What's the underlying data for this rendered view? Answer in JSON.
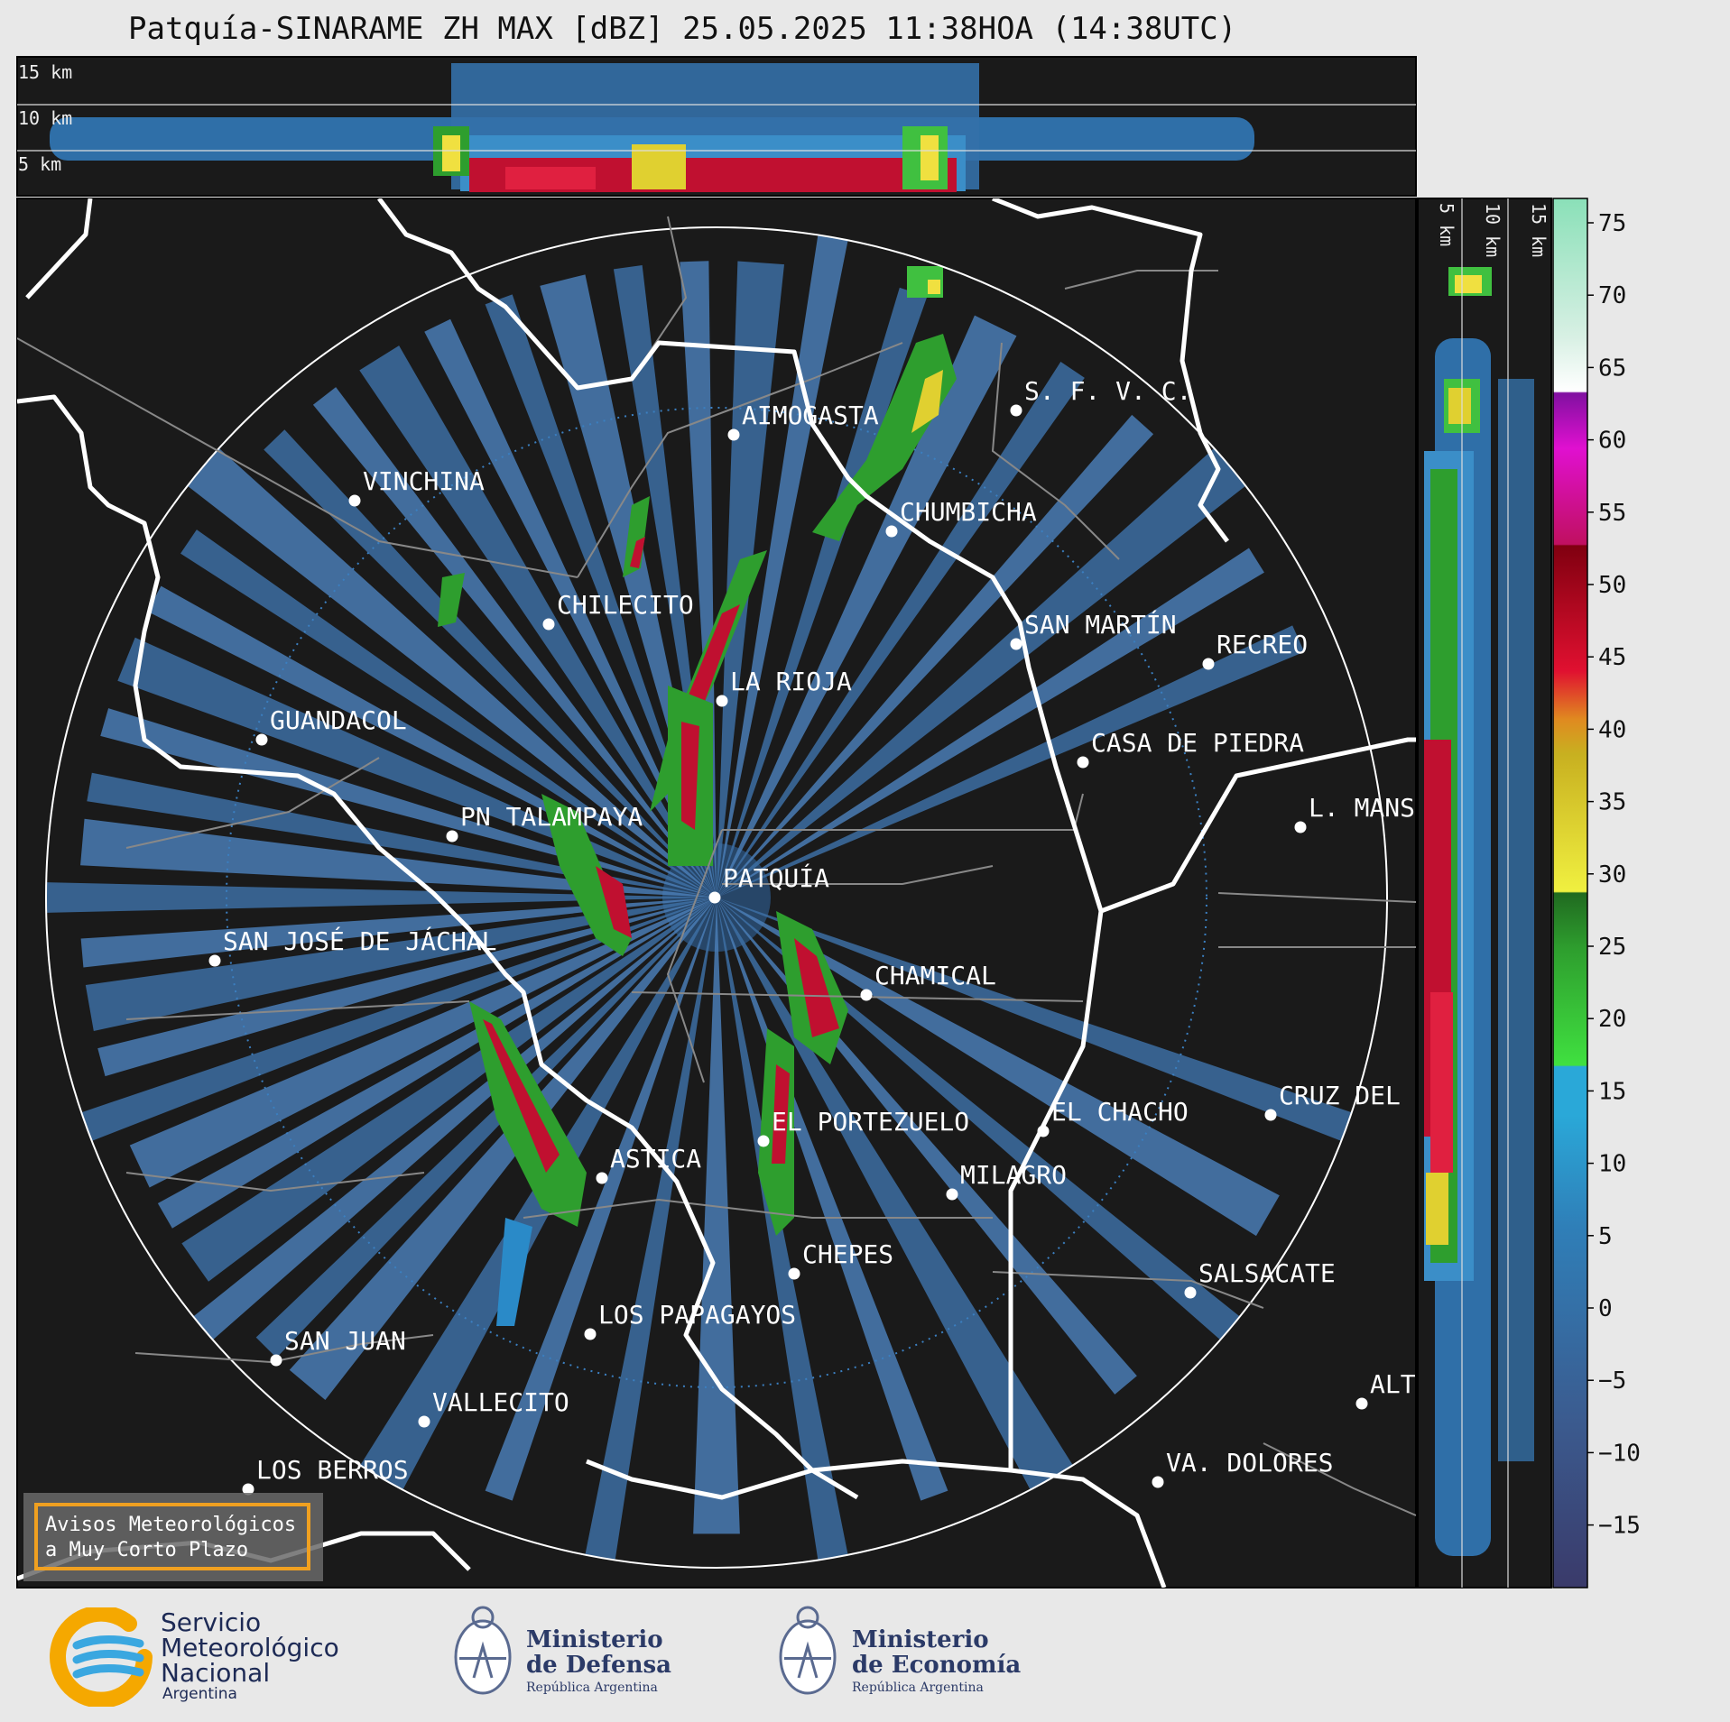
{
  "header": {
    "title": "Patquía-SINARAME ZH MAX [dBZ] 25.05.2025 11:38HOA (14:38UTC)"
  },
  "top_profile": {
    "height_labels": [
      "15 km",
      "10 km",
      "5 km"
    ]
  },
  "side_profile": {
    "height_labels": [
      "5 km",
      "10 km",
      "15 km"
    ]
  },
  "map": {
    "radar_site": "PATQUÍA",
    "cities": [
      {
        "name": "AIMOGASTA"
      },
      {
        "name": "S. F. V. C."
      },
      {
        "name": "VINCHINA"
      },
      {
        "name": "CHUMBICHA"
      },
      {
        "name": "CHILECITO"
      },
      {
        "name": "SAN MARTÍN"
      },
      {
        "name": "RECREO"
      },
      {
        "name": "LA RIOJA"
      },
      {
        "name": "GUANDACOL"
      },
      {
        "name": "CASA DE PIEDRA"
      },
      {
        "name": "L. MANS"
      },
      {
        "name": "PN TALAMPAYA"
      },
      {
        "name": "PATQUÍA"
      },
      {
        "name": "SAN JOSÉ DE JÁCHAL"
      },
      {
        "name": "CHAMICAL"
      },
      {
        "name": "EL CHACHO"
      },
      {
        "name": "CRUZ DEL"
      },
      {
        "name": "EL PORTEZUELO"
      },
      {
        "name": "ASTICA"
      },
      {
        "name": "MILAGRO"
      },
      {
        "name": "CHEPES"
      },
      {
        "name": "SALSACATE"
      },
      {
        "name": "LOS PAPAGAYOS"
      },
      {
        "name": "SAN JUAN"
      },
      {
        "name": "ALT"
      },
      {
        "name": "VALLECITO"
      },
      {
        "name": "LOS BERROS"
      },
      {
        "name": "VA. DOLORES"
      }
    ],
    "alert_box": [
      "Avisos Meteorológicos",
      "a Muy Corto Plazo"
    ]
  },
  "colorbar": {
    "ticks": [
      "75",
      "70",
      "65",
      "60",
      "55",
      "50",
      "45",
      "40",
      "35",
      "30",
      "25",
      "20",
      "15",
      "10",
      "5",
      "0",
      "−5",
      "−10",
      "−15"
    ],
    "colors": {
      "range_minus_15": "#3a3a6a",
      "range_0_15": "#2f7fb8",
      "range_15_20": "#2aa8d8",
      "range_20_30": "#2e9e2e",
      "range_30_40": "#e0d030",
      "range_40_45": "#e08a20",
      "range_45_55": "#c01020",
      "range_55_60": "#d010c0",
      "range_60_75": "#a0e0c0"
    }
  },
  "footer": {
    "smn": [
      "Servicio",
      "Meteorológico",
      "Nacional",
      "Argentina"
    ],
    "defensa": [
      "Ministerio",
      "de Defensa",
      "República Argentina"
    ],
    "economia": [
      "Ministerio",
      "de Economía",
      "República Argentina"
    ]
  }
}
